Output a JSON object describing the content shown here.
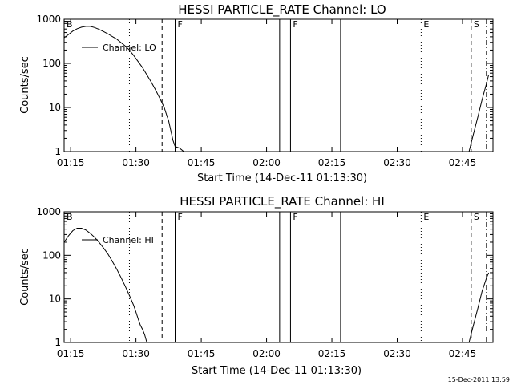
{
  "timestamp": "15-Dec-2011 13:59",
  "chart_data": [
    {
      "type": "line",
      "title": "HESSI PARTICLE_RATE Channel: LO",
      "xlabel": "Start Time (14-Dec-11 01:13:30)",
      "ylabel": "Counts/sec",
      "scale": {
        "x": "linear",
        "y": "log"
      },
      "xlim": [
        "01:13:30",
        "02:52:00"
      ],
      "ylim": [
        1,
        1000
      ],
      "x_ticks": [
        "01:15",
        "01:30",
        "01:45",
        "02:00",
        "02:15",
        "02:30",
        "02:45"
      ],
      "y_ticks": [
        "1",
        "10",
        "100",
        "1000"
      ],
      "legend": {
        "label": "Channel: LO",
        "placement": "upper-left"
      },
      "markers": [
        {
          "time": "01:13:30",
          "style": "solid",
          "label": "B"
        },
        {
          "time": "01:28:30",
          "style": "dotted",
          "label": ""
        },
        {
          "time": "01:36:00",
          "style": "dashed",
          "label": ""
        },
        {
          "time": "01:39:00",
          "style": "solid",
          "label": "F"
        },
        {
          "time": "02:03:00",
          "style": "solid",
          "label": ""
        },
        {
          "time": "02:05:30",
          "style": "solid",
          "label": "F"
        },
        {
          "time": "02:17:00",
          "style": "solid",
          "label": ""
        },
        {
          "time": "02:35:30",
          "style": "dotted",
          "label": "E"
        },
        {
          "time": "02:47:00",
          "style": "dashed",
          "label": "S"
        },
        {
          "time": "02:50:30",
          "style": "dashdot",
          "label": ""
        }
      ],
      "series": [
        {
          "name": "Channel: LO",
          "segments": [
            [
              [
                "01:13:30",
                380
              ],
              [
                "01:14:30",
                450
              ],
              [
                "01:15:30",
                540
              ],
              [
                "01:16:30",
                610
              ],
              [
                "01:17:30",
                660
              ],
              [
                "01:18:30",
                690
              ],
              [
                "01:19:30",
                690
              ],
              [
                "01:20:30",
                650
              ],
              [
                "01:21:30",
                590
              ],
              [
                "01:22:30",
                530
              ],
              [
                "01:23:30",
                470
              ],
              [
                "01:24:30",
                410
              ],
              [
                "01:25:30",
                360
              ],
              [
                "01:26:30",
                300
              ],
              [
                "01:27:30",
                250
              ],
              [
                "01:28:30",
                200
              ],
              [
                "01:29:30",
                150
              ],
              [
                "01:30:30",
                110
              ],
              [
                "01:31:30",
                80
              ],
              [
                "01:32:30",
                55
              ],
              [
                "01:33:30",
                38
              ],
              [
                "01:34:30",
                25
              ],
              [
                "01:35:30",
                16
              ],
              [
                "01:36:30",
                10
              ],
              [
                "01:37:00",
                7
              ],
              [
                "01:37:30",
                5
              ],
              [
                "01:38:00",
                3
              ],
              [
                "01:38:30",
                1.8
              ],
              [
                "01:39:00",
                1.3
              ],
              [
                "01:40:00",
                1.2
              ],
              [
                "01:41:00",
                1.0
              ]
            ],
            [
              [
                "02:46:30",
                1.0
              ],
              [
                "02:47:30",
                2.5
              ],
              [
                "02:48:30",
                6
              ],
              [
                "02:49:30",
                15
              ],
              [
                "02:50:30",
                35
              ],
              [
                "02:51:00",
                55
              ]
            ]
          ]
        }
      ]
    },
    {
      "type": "line",
      "title": "HESSI PARTICLE_RATE Channel: HI",
      "xlabel": "Start Time (14-Dec-11 01:13:30)",
      "ylabel": "Counts/sec",
      "scale": {
        "x": "linear",
        "y": "log"
      },
      "xlim": [
        "01:13:30",
        "02:52:00"
      ],
      "ylim": [
        1,
        1000
      ],
      "x_ticks": [
        "01:15",
        "01:30",
        "01:45",
        "02:00",
        "02:15",
        "02:30",
        "02:45"
      ],
      "y_ticks": [
        "1",
        "10",
        "100",
        "1000"
      ],
      "legend": {
        "label": "Channel: HI",
        "placement": "upper-left"
      },
      "markers": [
        {
          "time": "01:13:30",
          "style": "solid",
          "label": "B"
        },
        {
          "time": "01:28:30",
          "style": "dotted",
          "label": ""
        },
        {
          "time": "01:36:00",
          "style": "dashed",
          "label": ""
        },
        {
          "time": "01:39:00",
          "style": "solid",
          "label": "F"
        },
        {
          "time": "02:03:00",
          "style": "solid",
          "label": ""
        },
        {
          "time": "02:05:30",
          "style": "solid",
          "label": "F"
        },
        {
          "time": "02:17:00",
          "style": "solid",
          "label": ""
        },
        {
          "time": "02:35:30",
          "style": "dotted",
          "label": "E"
        },
        {
          "time": "02:47:00",
          "style": "dashed",
          "label": "S"
        },
        {
          "time": "02:50:30",
          "style": "dashdot",
          "label": ""
        }
      ],
      "series": [
        {
          "name": "Channel: HI",
          "segments": [
            [
              [
                "01:13:30",
                200
              ],
              [
                "01:14:30",
                280
              ],
              [
                "01:15:30",
                370
              ],
              [
                "01:16:30",
                420
              ],
              [
                "01:17:30",
                420
              ],
              [
                "01:18:30",
                380
              ],
              [
                "01:19:30",
                320
              ],
              [
                "01:20:30",
                260
              ],
              [
                "01:21:30",
                200
              ],
              [
                "01:22:30",
                150
              ],
              [
                "01:23:30",
                110
              ],
              [
                "01:24:30",
                75
              ],
              [
                "01:25:30",
                50
              ],
              [
                "01:26:30",
                32
              ],
              [
                "01:27:30",
                20
              ],
              [
                "01:28:30",
                12
              ],
              [
                "01:29:30",
                7
              ],
              [
                "01:30:00",
                5
              ],
              [
                "01:30:30",
                3.5
              ],
              [
                "01:31:00",
                2.5
              ],
              [
                "01:31:30",
                2
              ],
              [
                "01:32:00",
                1.5
              ],
              [
                "01:32:30",
                1.0
              ]
            ],
            [
              [
                "02:46:30",
                1.0
              ],
              [
                "02:47:30",
                2.5
              ],
              [
                "02:48:30",
                6
              ],
              [
                "02:49:30",
                15
              ],
              [
                "02:50:30",
                30
              ],
              [
                "02:51:00",
                40
              ]
            ]
          ]
        }
      ]
    }
  ]
}
